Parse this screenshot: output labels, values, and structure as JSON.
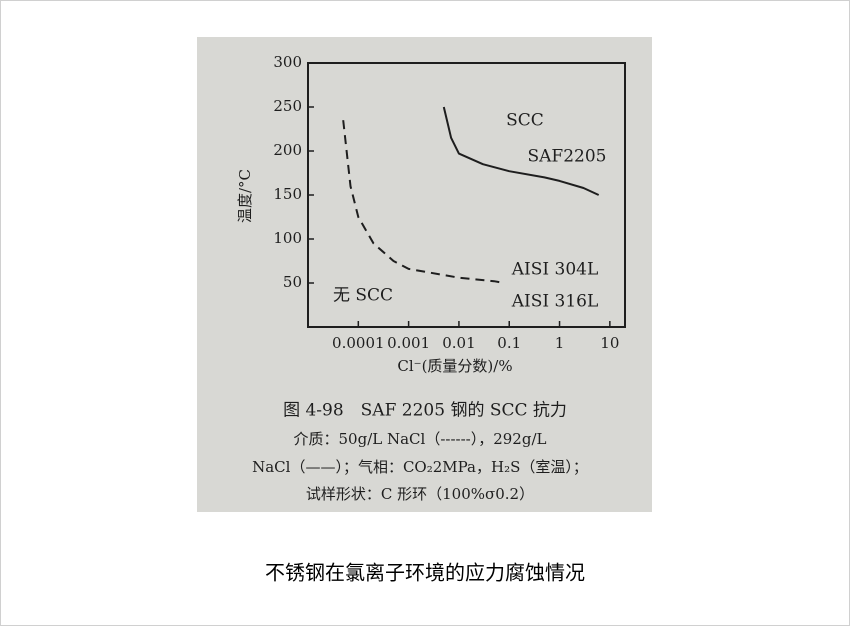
{
  "chart_data": {
    "type": "line",
    "x_label": "Cl⁻(质量分数)/%",
    "y_label": "温度/°C",
    "xscale": "log",
    "xlim": [
      1e-05,
      20
    ],
    "xticks": [
      0.0001,
      0.001,
      0.01,
      0.1,
      1,
      10
    ],
    "ylim": [
      0,
      300
    ],
    "yticks": [
      50,
      100,
      150,
      200,
      250,
      300
    ],
    "series": [
      {
        "color": "#1e1e1e",
        "dash": "dashed",
        "x": [
          5e-05,
          7e-05,
          0.0001,
          0.0002,
          0.0005,
          0.001,
          0.01,
          0.05,
          0.08
        ],
        "values": [
          235,
          160,
          125,
          95,
          75,
          66,
          56,
          52,
          50
        ]
      },
      {
        "color": "#1e1e1e",
        "dash": "solid",
        "x": [
          0.005,
          0.007,
          0.01,
          0.03,
          0.1,
          0.5,
          1,
          3,
          6
        ],
        "values": [
          250,
          215,
          197,
          185,
          177,
          170,
          166,
          158,
          150
        ]
      }
    ],
    "annotations": [
      "SCC",
      "SAF2205",
      "AISI 304L",
      "AISI 316L",
      "无 SCC"
    ],
    "caption": [
      "图 4-98　SAF 2205 钢的 SCC 抗力",
      "介质：50g/L NaCl（------），292g/L",
      "NaCl（——）；气相：CO₂2MPa，H₂S（室温）；",
      "试样形状：C 形环（100%σ0.2）"
    ],
    "title": "不锈钢在氯离子环境的应力腐蚀情况"
  }
}
